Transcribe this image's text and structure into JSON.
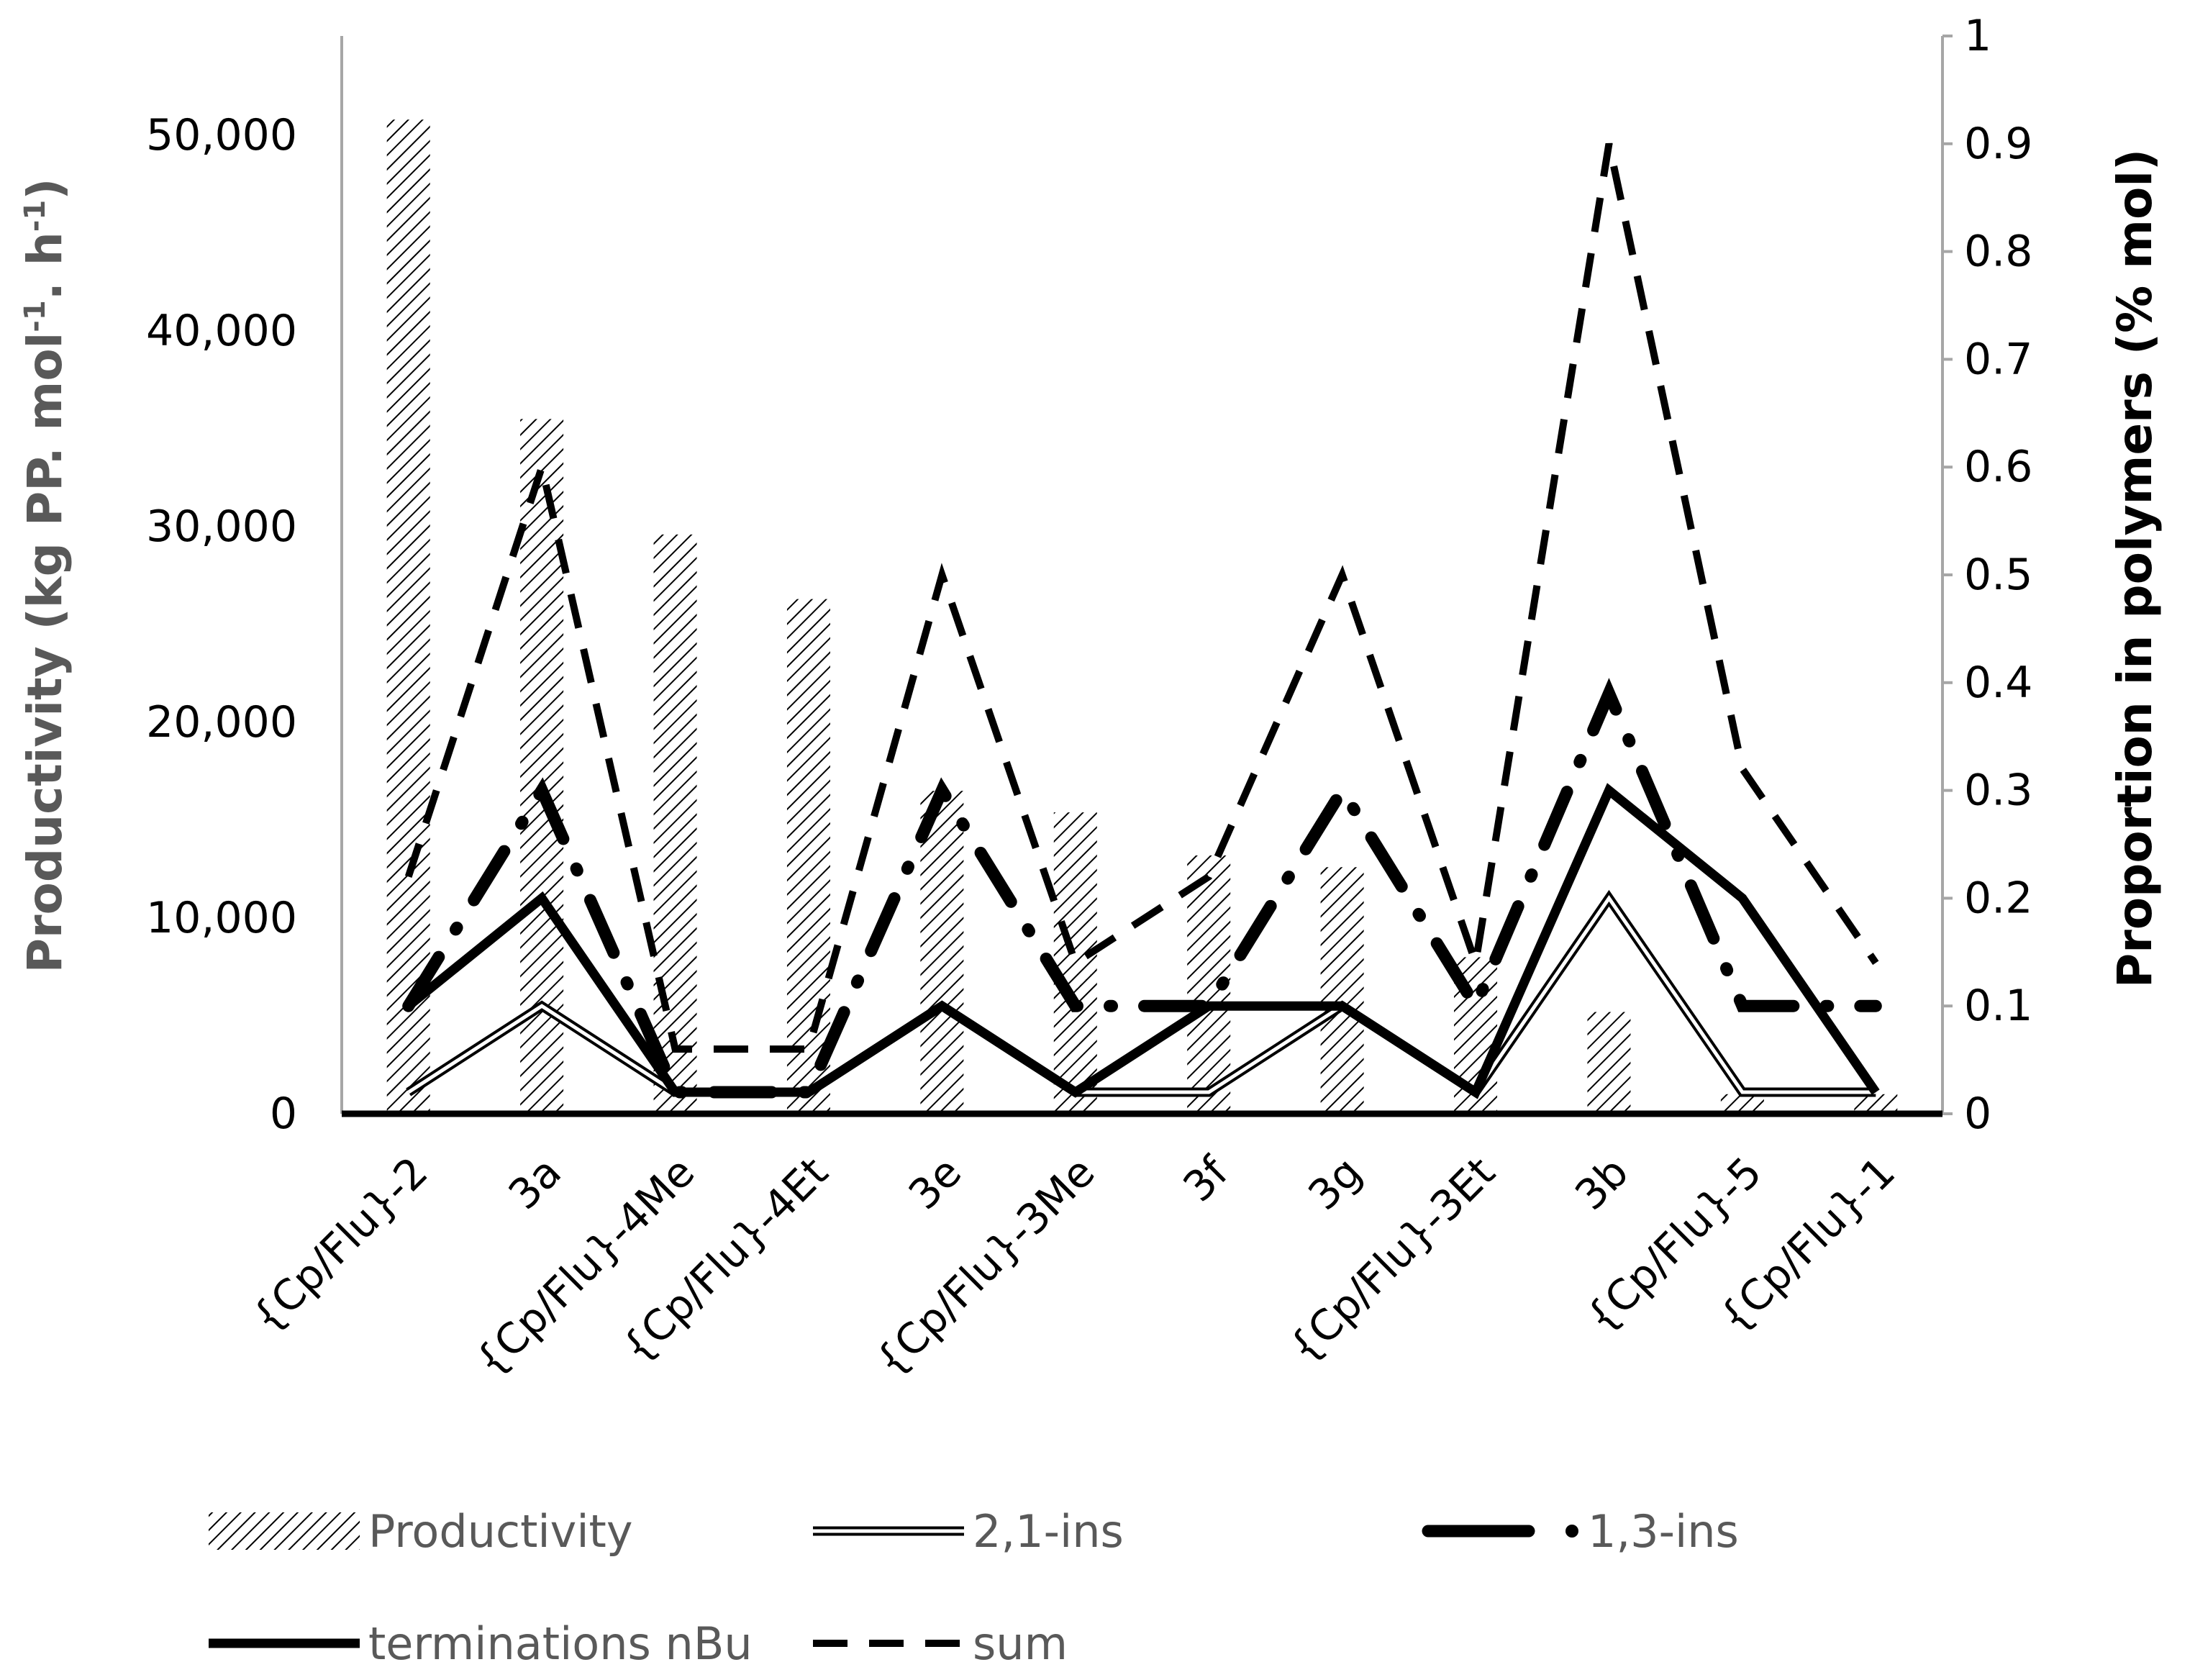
{
  "chart_data": {
    "type": "bar",
    "title": "",
    "categories": [
      "{Cp/Flu}-2",
      "3a",
      "{Cp/Flu}-4Me",
      "{Cp/Flu}-4Et",
      "3e",
      "{Cp/Flu}-3Me",
      "3f",
      "3g",
      "{Cp/Flu}-3Et",
      "3b",
      "{Cp/Flu}-5",
      "{Cp/Flu}-1"
    ],
    "ylabel_left": "Productivity (kg PP. mol",
    "ylabel_left_sup1": "-1",
    "ylabel_left_mid": ". h",
    "ylabel_left_sup2": "-1",
    "ylabel_left_end": ")",
    "ylabel_right": "Proportion in polymers (% mol)",
    "ylim_left": [
      0,
      55000
    ],
    "ylim_right": [
      0,
      1
    ],
    "yticks_left": [
      "0",
      "10,000",
      "20,000",
      "30,000",
      "40,000",
      "50,000"
    ],
    "yticks_right": [
      "0",
      "0.1",
      "0.2",
      "0.3",
      "0.4",
      "0.5",
      "0.6",
      "0.7",
      "0.8",
      "0.9",
      "1"
    ],
    "bars": {
      "name": "Productivity",
      "axis": "left",
      "values": [
        50800,
        35500,
        29600,
        26300,
        16500,
        15400,
        13200,
        12600,
        8000,
        5200,
        1000,
        1000
      ]
    },
    "series": [
      {
        "name": "2,1-ins",
        "axis": "right",
        "style": "double",
        "values": [
          0.02,
          0.1,
          0.02,
          0.02,
          0.1,
          0.02,
          0.02,
          0.1,
          0.02,
          0.2,
          0.02,
          0.02
        ]
      },
      {
        "name": "1,3-ins",
        "axis": "right",
        "style": "dash-dot",
        "values": [
          0.1,
          0.3,
          0.02,
          0.02,
          0.3,
          0.1,
          0.1,
          0.3,
          0.1,
          0.39,
          0.1,
          0.1
        ]
      },
      {
        "name": "terminations nBu",
        "axis": "right",
        "style": "solid",
        "values": [
          0.1,
          0.2,
          0.02,
          0.02,
          0.1,
          0.02,
          0.1,
          0.1,
          0.02,
          0.3,
          0.2,
          0.02
        ]
      },
      {
        "name": "sum",
        "axis": "right",
        "style": "dash",
        "values": [
          0.22,
          0.6,
          0.06,
          0.06,
          0.5,
          0.14,
          0.22,
          0.5,
          0.14,
          0.9,
          0.32,
          0.14
        ]
      }
    ],
    "legend": [
      "Productivity",
      "2,1-ins",
      "1,3-ins",
      "terminations nBu",
      "sum"
    ],
    "legend_position": "bottom",
    "grid": false
  }
}
